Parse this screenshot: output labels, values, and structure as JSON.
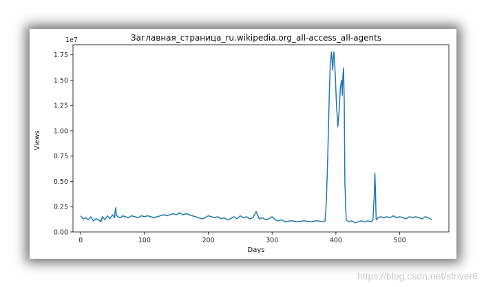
{
  "chart_data": {
    "type": "line",
    "title": "Заглавная_страница_ru.wikipedia.org_all-access_all-agents",
    "xlabel": "Days",
    "ylabel": "Views",
    "offset_label": "1e7",
    "xlim": [
      -12,
      577
    ],
    "ylim": [
      0,
      1.85
    ],
    "x_ticks": [
      0,
      100,
      200,
      300,
      400,
      500
    ],
    "y_ticks": [
      0.0,
      0.25,
      0.5,
      0.75,
      1.0,
      1.25,
      1.5,
      1.75
    ],
    "y_tick_labels": [
      "0.00",
      "0.25",
      "0.50",
      "0.75",
      "1.00",
      "1.25",
      "1.50",
      "1.75"
    ],
    "grid": false,
    "series": [
      {
        "color": "#1f77b4",
        "x": [
          0,
          4,
          8,
          12,
          16,
          20,
          24,
          28,
          32,
          34,
          38,
          42,
          46,
          50,
          53,
          54,
          55,
          56,
          58,
          62,
          66,
          70,
          75,
          80,
          85,
          90,
          95,
          100,
          105,
          110,
          115,
          120,
          125,
          130,
          135,
          140,
          145,
          150,
          155,
          160,
          165,
          170,
          175,
          180,
          185,
          190,
          195,
          200,
          205,
          210,
          215,
          220,
          225,
          230,
          235,
          240,
          245,
          250,
          255,
          260,
          265,
          270,
          275,
          280,
          285,
          290,
          295,
          300,
          305,
          310,
          315,
          320,
          330,
          340,
          350,
          360,
          370,
          380,
          383,
          385,
          387,
          389,
          391,
          393,
          395,
          396,
          397,
          399,
          401,
          403,
          405,
          407,
          409,
          410,
          411,
          412,
          413,
          414,
          416,
          420,
          425,
          430,
          435,
          440,
          445,
          450,
          455,
          458,
          460,
          461,
          462,
          463,
          464,
          466,
          470,
          475,
          480,
          485,
          490,
          495,
          500,
          505,
          510,
          515,
          520,
          525,
          530,
          535,
          540,
          545,
          550
        ],
        "y": [
          0.16,
          0.13,
          0.14,
          0.12,
          0.15,
          0.11,
          0.13,
          0.12,
          0.1,
          0.15,
          0.12,
          0.16,
          0.13,
          0.17,
          0.14,
          0.2,
          0.24,
          0.17,
          0.15,
          0.14,
          0.16,
          0.15,
          0.14,
          0.16,
          0.15,
          0.14,
          0.16,
          0.15,
          0.16,
          0.15,
          0.14,
          0.15,
          0.16,
          0.17,
          0.16,
          0.17,
          0.18,
          0.17,
          0.19,
          0.17,
          0.18,
          0.17,
          0.16,
          0.15,
          0.14,
          0.13,
          0.14,
          0.16,
          0.15,
          0.14,
          0.15,
          0.13,
          0.14,
          0.12,
          0.13,
          0.15,
          0.13,
          0.16,
          0.14,
          0.15,
          0.13,
          0.14,
          0.2,
          0.13,
          0.14,
          0.12,
          0.13,
          0.15,
          0.12,
          0.11,
          0.12,
          0.1,
          0.11,
          0.1,
          0.11,
          0.1,
          0.11,
          0.1,
          0.11,
          0.3,
          0.7,
          1.2,
          1.65,
          1.78,
          1.6,
          1.73,
          1.78,
          1.55,
          1.25,
          1.04,
          1.2,
          1.43,
          1.5,
          1.35,
          1.55,
          1.62,
          1.3,
          0.5,
          0.12,
          0.1,
          0.11,
          0.09,
          0.1,
          0.11,
          0.1,
          0.11,
          0.1,
          0.12,
          0.35,
          0.58,
          0.4,
          0.13,
          0.12,
          0.14,
          0.15,
          0.14,
          0.15,
          0.14,
          0.16,
          0.14,
          0.15,
          0.14,
          0.13,
          0.15,
          0.14,
          0.15,
          0.14,
          0.13,
          0.15,
          0.14,
          0.12
        ]
      }
    ]
  },
  "watermark": "https://blog.csdn.net/striver6"
}
